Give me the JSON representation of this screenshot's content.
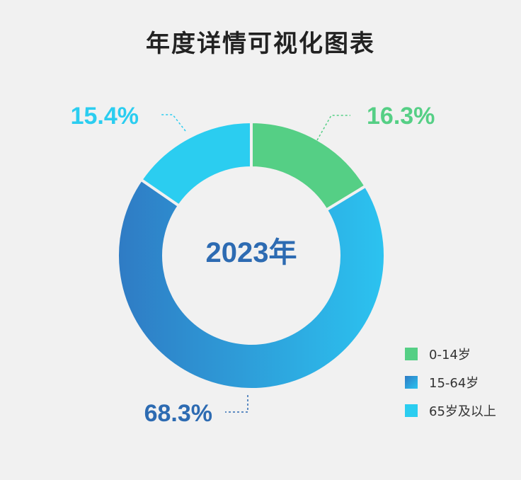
{
  "chart_data": {
    "type": "pie",
    "title": "年度详情可视化图表",
    "center_label": "2023年",
    "slices": [
      {
        "label": "0-14岁",
        "value": 16.3,
        "display": "16.3%",
        "color": "#55cf85"
      },
      {
        "label": "15-64岁",
        "value": 68.3,
        "display": "68.3%",
        "color": "#1f8fe6"
      },
      {
        "label": "65岁及以上",
        "value": 15.4,
        "display": "15.4%",
        "color": "#2bcdf0"
      }
    ],
    "legend_position": "bottom-right"
  }
}
